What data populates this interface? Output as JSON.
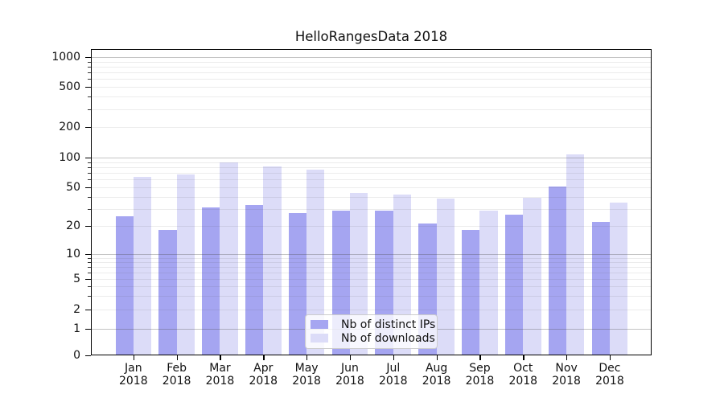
{
  "chart_data": {
    "type": "bar",
    "title": "HelloRangesData 2018",
    "categories": [
      "Jan",
      "Feb",
      "Mar",
      "Apr",
      "May",
      "Jun",
      "Jul",
      "Aug",
      "Sep",
      "Oct",
      "Nov",
      "Dec"
    ],
    "x_year": "2018",
    "series": [
      {
        "name": "Nb of distinct IPs",
        "color": "#a5a5f1",
        "values": [
          25,
          18,
          31,
          33,
          27,
          29,
          29,
          21,
          18,
          26,
          51,
          22
        ]
      },
      {
        "name": "Nb of downloads",
        "color": "#dcdcf8",
        "values": [
          64,
          68,
          90,
          81,
          75,
          44,
          42,
          38,
          29,
          39,
          107,
          35
        ]
      }
    ],
    "xlabel": "",
    "ylabel": "",
    "yaxis": {
      "scale": "log-with-zero",
      "tick_labels": [
        0,
        1,
        2,
        5,
        10,
        20,
        50,
        100,
        200,
        500,
        1000
      ],
      "ylim": [
        0,
        1400
      ]
    },
    "grid": true,
    "legend": {
      "position": "lower center"
    }
  }
}
